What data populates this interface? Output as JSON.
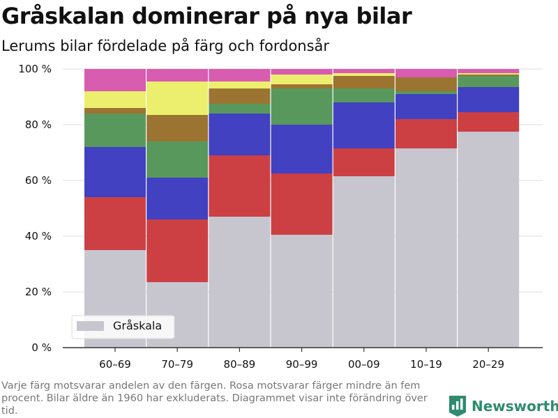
{
  "title": "Gråskalan dominerar på nya bilar",
  "subtitle": "Lerums bilar fördelade på färg och fordonsår",
  "footnote": "Varje färg motsvarar andelen av den färgen. Rosa motsvarar färger mindre än fem procent. Bilar äldre än 1960 har exkluderats. Diagrammet visar inte förändring över tid.",
  "logo_text": "Newsworthy",
  "colors": {
    "Gråskala": "#c7c6ce",
    "Röd": "#cc4044",
    "Blå": "#4141c2",
    "Grön": "#59985d",
    "Brun": "#9c7432",
    "Gul": "#ecef6e",
    "Rosa": "#d85cb0",
    "axis": "#333333",
    "grid": "#dddddd",
    "logo": "#2e8b6e"
  },
  "chart_data": {
    "type": "bar",
    "stacked": true,
    "categories": [
      "60–69",
      "70–79",
      "80–89",
      "90–99",
      "00–09",
      "10–19",
      "20–29"
    ],
    "ylim": [
      0,
      100
    ],
    "yticks": [
      0,
      20,
      40,
      60,
      80,
      100
    ],
    "ytick_labels": [
      "0 %",
      "20 %",
      "40 %",
      "60 %",
      "80 %",
      "100 %"
    ],
    "grid": true,
    "legend": {
      "placement": "bottom-left",
      "entries": [
        "Gråskala"
      ]
    },
    "series": [
      {
        "name": "Gråskala",
        "color_key": "Gråskala",
        "values": [
          35,
          23.5,
          47,
          40.5,
          61.5,
          71.5,
          77.5
        ]
      },
      {
        "color_key": "Röd",
        "values": [
          19,
          22.5,
          22,
          22,
          10,
          10.5,
          7
        ]
      },
      {
        "color_key": "Blå",
        "values": [
          18,
          15,
          15,
          17.5,
          16.5,
          9,
          9
        ]
      },
      {
        "color_key": "Grön",
        "values": [
          12,
          13,
          3.5,
          13,
          5,
          1,
          4
        ]
      },
      {
        "color_key": "Brun",
        "values": [
          2,
          9.5,
          5.5,
          1.5,
          4.5,
          5,
          0.5
        ]
      },
      {
        "color_key": "Gul",
        "values": [
          6,
          12,
          2.5,
          3.5,
          1,
          0,
          0.5
        ]
      },
      {
        "color_key": "Rosa",
        "values": [
          8,
          4.5,
          4.5,
          2,
          1.5,
          3,
          1.5
        ]
      }
    ]
  }
}
